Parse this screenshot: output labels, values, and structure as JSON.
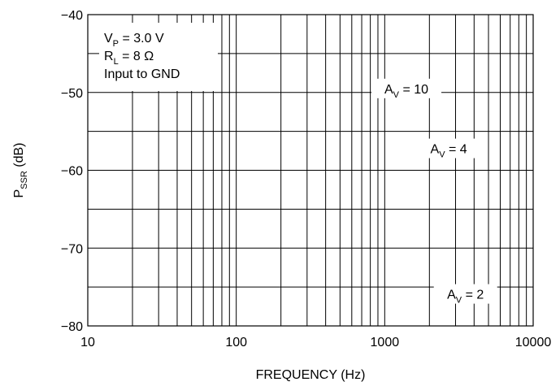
{
  "chart_data": {
    "type": "line",
    "title": "",
    "xlabel": "FREQUENCY (Hz)",
    "ylabel": {
      "main": "P",
      "sub": "SSR",
      "rest": " (dB)"
    },
    "x_scale": "log",
    "xlim": [
      10,
      10000
    ],
    "ylim": [
      -80,
      -40
    ],
    "x_ticks": [
      10,
      100,
      1000,
      10000
    ],
    "x_tick_labels": [
      "10",
      "100",
      "1000",
      "10000"
    ],
    "y_ticks": [
      -80,
      -70,
      -60,
      -50,
      -40
    ],
    "y_tick_labels": [
      "−80",
      "−70",
      "−60",
      "−50",
      "−40"
    ],
    "grid": true,
    "conditions": [
      {
        "main": "V",
        "sub": "P",
        "rest": " = 3.0 V"
      },
      {
        "main": "R",
        "sub": "L",
        "rest": " = 8 Ω"
      },
      {
        "main": "Input to GND",
        "sub": "",
        "rest": ""
      }
    ],
    "series": [],
    "annotations": [
      {
        "main": "A",
        "sub": "V",
        "rest": " = 10",
        "x": 1400,
        "y": -49.8
      },
      {
        "main": "A",
        "sub": "V",
        "rest": " = 4",
        "x": 2700,
        "y": -57.5
      },
      {
        "main": "A",
        "sub": "V",
        "rest": " = 2",
        "x": 3500,
        "y": -76.2
      }
    ]
  }
}
